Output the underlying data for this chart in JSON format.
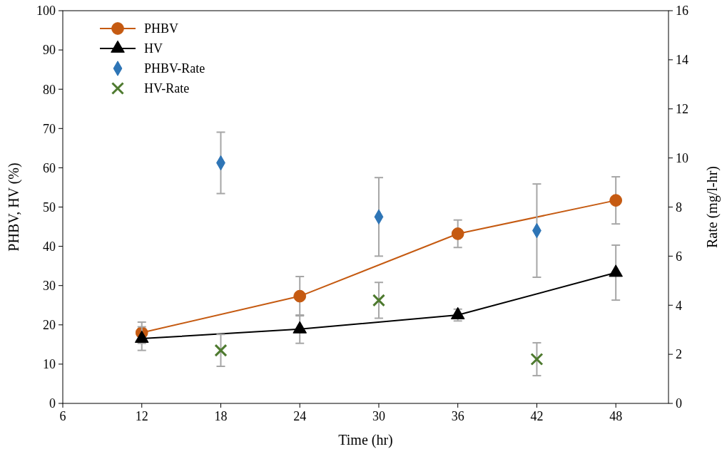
{
  "chart_data": {
    "type": "line",
    "xlabel": "Time (hr)",
    "ylabel": "PHBV, HV (%)",
    "y2label": "Rate (mg/l-hr)",
    "xlim": [
      6,
      52
    ],
    "xticks": [
      6,
      12,
      18,
      24,
      30,
      36,
      42,
      48
    ],
    "ylim": [
      0,
      100
    ],
    "yticks": [
      0,
      10,
      20,
      30,
      40,
      50,
      60,
      70,
      80,
      90,
      100
    ],
    "y2lim": [
      0,
      16
    ],
    "y2ticks": [
      0,
      2,
      4,
      6,
      8,
      10,
      12,
      14,
      16
    ],
    "grid": false,
    "legend": "top left",
    "series": [
      {
        "name": "PHBV",
        "marker": "circle",
        "color": "#c55a11",
        "x": [
          12,
          24,
          36,
          48
        ],
        "values": [
          18.0,
          27.3,
          43.2,
          51.7
        ],
        "errors": [
          2.7,
          5,
          3.5,
          6
        ]
      },
      {
        "name": "HV",
        "marker": "triangle",
        "color": "#000000",
        "x": [
          12,
          24,
          36,
          48
        ],
        "values": [
          16.5,
          18.9,
          22.5,
          33.3
        ],
        "errors": [
          3,
          3.6,
          1.5,
          7
        ]
      },
      {
        "name": "PHBV-Rate",
        "type": "scatter",
        "marker": "diamond",
        "color": "#2e75b6",
        "axis": "y2",
        "x": [
          18,
          30,
          42
        ],
        "values": [
          9.8,
          7.6,
          7.04
        ],
        "errors": [
          1.25,
          1.6,
          1.9
        ]
      },
      {
        "name": "HV-Rate",
        "type": "scatter",
        "marker": "cross",
        "color": "#4e7a2f",
        "axis": "y2",
        "x": [
          18,
          30,
          42
        ],
        "values": [
          2.16,
          4.2,
          1.8
        ],
        "errors": [
          0.65,
          0.73,
          0.67
        ]
      }
    ]
  }
}
